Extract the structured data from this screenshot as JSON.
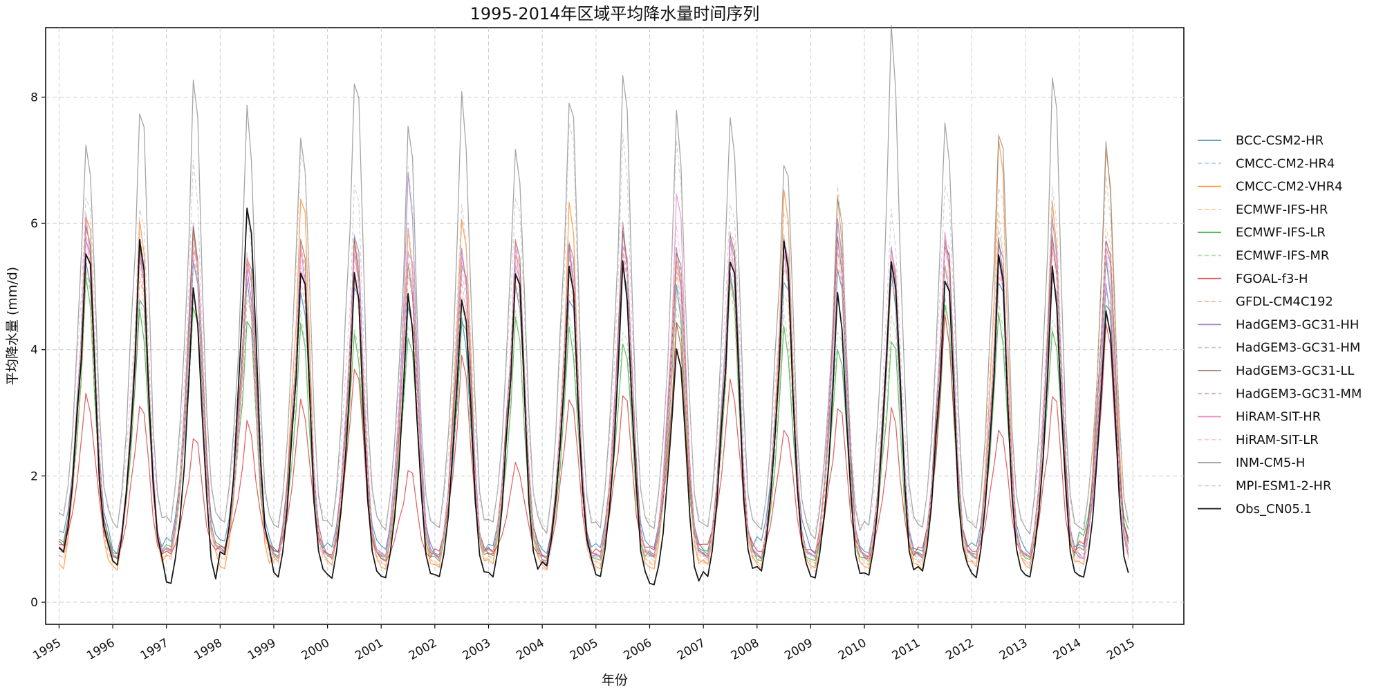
{
  "chart_data": {
    "type": "line",
    "title": "1995-2014年区域平均降水量时间序列",
    "xlabel": "年份",
    "ylabel": "平均降水量 (mm/d)",
    "ylim": [
      -0.35,
      9.1
    ],
    "yticks": [
      0,
      2,
      4,
      6,
      8
    ],
    "xlim": [
      1994.75,
      2015.95
    ],
    "xticks": [
      "1995",
      "1996",
      "1997",
      "1998",
      "1999",
      "2000",
      "2001",
      "2002",
      "2003",
      "2004",
      "2005",
      "2006",
      "2007",
      "2008",
      "2009",
      "2010",
      "2011",
      "2012",
      "2013",
      "2014",
      "2015"
    ],
    "grid": true,
    "legend_position": "right",
    "x_resolution": "monthly, Jan 1995 - Dec 2014",
    "series": [
      {
        "name": "BCC-CSM2-HR",
        "color": "#1f77b4",
        "dashed": false,
        "peaks": [
          5.5,
          4.9,
          5.3,
          5.0,
          5.0,
          5.1,
          4.6,
          4.4,
          5.1,
          4.9,
          5.2,
          4.9,
          5.3,
          5.2,
          5.2,
          5.1,
          5.4,
          5.2,
          5.1,
          5.3
        ],
        "mins": [
          0.9,
          0.6,
          0.8,
          0.8,
          0.6,
          0.7,
          0.7,
          0.6,
          0.7,
          0.6,
          0.7,
          0.7,
          0.6,
          0.8,
          0.6,
          0.6,
          0.6,
          0.7,
          0.6,
          0.7
        ]
      },
      {
        "name": "CMCC-CM2-HR4",
        "color": "#aec7e8",
        "dashed": true,
        "peaks": [
          5.9,
          5.4,
          5.6,
          5.3,
          5.5,
          5.5,
          5.4,
          5.3,
          5.4,
          5.2,
          5.5,
          5.3,
          5.6,
          5.3,
          5.8,
          5.4,
          5.8,
          5.5,
          5.6,
          5.5
        ],
        "mins": [
          0.7,
          0.5,
          0.6,
          0.6,
          0.5,
          0.5,
          0.5,
          0.5,
          0.6,
          0.4,
          0.5,
          0.5,
          0.5,
          0.5,
          0.4,
          0.5,
          0.4,
          0.5,
          0.4,
          0.5
        ]
      },
      {
        "name": "CMCC-CM2-VHR4",
        "color": "#ff7f0e",
        "dashed": false,
        "peaks": [
          6.2,
          5.9,
          5.8,
          5.6,
          6.5,
          5.6,
          5.8,
          6.2,
          5.6,
          6.2,
          5.9,
          5.5,
          5.5,
          6.4,
          6.3,
          5.7,
          5.8,
          7.2,
          6.2,
          7.3
        ],
        "mins": [
          0.3,
          0.3,
          0.5,
          0.3,
          0.4,
          0.4,
          0.3,
          0.3,
          0.4,
          0.3,
          0.3,
          0.3,
          0.4,
          0.3,
          0.3,
          0.3,
          0.3,
          0.3,
          0.3,
          0.3
        ]
      },
      {
        "name": "ECMWF-IFS-HR",
        "color": "#ffbb78",
        "dashed": true,
        "peaks": [
          5.2,
          5.1,
          5.0,
          4.9,
          5.6,
          5.0,
          4.9,
          5.0,
          5.0,
          5.1,
          5.3,
          5.0,
          5.1,
          5.4,
          5.6,
          5.2,
          5.3,
          6.0,
          5.7,
          6.1
        ],
        "mins": [
          0.5,
          0.4,
          0.6,
          0.5,
          0.5,
          0.4,
          0.4,
          0.4,
          0.5,
          0.4,
          0.4,
          0.4,
          0.4,
          0.4,
          0.4,
          0.4,
          0.4,
          0.4,
          0.4,
          0.4
        ]
      },
      {
        "name": "ECMWF-IFS-LR",
        "color": "#2ca02c",
        "dashed": false,
        "peaks": [
          5.0,
          4.6,
          4.8,
          4.5,
          4.3,
          4.2,
          4.3,
          4.5,
          4.4,
          4.3,
          4.2,
          4.5,
          5.0,
          4.3,
          4.1,
          4.2,
          4.6,
          4.5,
          4.4,
          4.8
        ],
        "mins": [
          0.8,
          0.6,
          0.7,
          0.7,
          0.6,
          0.6,
          0.5,
          0.5,
          0.6,
          0.5,
          0.5,
          0.6,
          0.6,
          0.5,
          0.5,
          0.5,
          0.6,
          0.6,
          0.5,
          0.9
        ]
      },
      {
        "name": "ECMWF-IFS-MR",
        "color": "#98df8a",
        "dashed": true,
        "peaks": [
          5.1,
          4.9,
          4.7,
          4.8,
          4.5,
          4.4,
          4.5,
          4.6,
          4.5,
          4.6,
          4.4,
          4.6,
          4.9,
          4.6,
          4.4,
          4.5,
          4.7,
          4.8,
          4.6,
          4.9
        ],
        "mins": [
          0.6,
          0.5,
          0.6,
          0.6,
          0.5,
          0.5,
          0.5,
          0.5,
          0.5,
          0.4,
          0.5,
          0.5,
          0.5,
          0.5,
          0.4,
          0.5,
          0.5,
          0.5,
          0.5,
          0.6
        ]
      },
      {
        "name": "FGOAL-f3-H",
        "color": "#d62728",
        "dashed": false,
        "peaks": [
          3.3,
          3.2,
          2.6,
          2.8,
          3.2,
          3.8,
          2.1,
          3.8,
          2.2,
          3.3,
          3.3,
          4.3,
          3.5,
          2.8,
          3.1,
          3.0,
          4.5,
          2.8,
          3.3,
          4.3
        ],
        "mins": [
          0.8,
          0.6,
          0.7,
          0.8,
          0.7,
          0.6,
          0.6,
          0.7,
          0.7,
          0.6,
          0.7,
          0.7,
          0.8,
          0.7,
          0.7,
          0.6,
          0.7,
          0.7,
          0.6,
          0.8
        ]
      },
      {
        "name": "GFDL-CM4C192",
        "color": "#ff9896",
        "dashed": true,
        "peaks": [
          5.4,
          5.2,
          5.4,
          5.0,
          5.2,
          5.3,
          5.1,
          5.0,
          5.2,
          5.0,
          5.4,
          5.1,
          5.2,
          5.0,
          5.3,
          5.2,
          5.4,
          5.3,
          5.1,
          5.4
        ],
        "mins": [
          0.5,
          0.4,
          0.5,
          0.5,
          0.4,
          0.4,
          0.4,
          0.4,
          0.5,
          0.3,
          0.4,
          0.4,
          0.4,
          0.4,
          0.3,
          0.4,
          0.4,
          0.4,
          0.4,
          0.4
        ]
      },
      {
        "name": "HadGEM3-GC31-HH",
        "color": "#9467bd",
        "dashed": false,
        "peaks": [
          5.9,
          5.6,
          5.8,
          5.3,
          5.4,
          5.8,
          6.6,
          5.6,
          5.5,
          5.7,
          5.8,
          5.6,
          5.9,
          5.7,
          5.9,
          5.6,
          5.8,
          5.7,
          5.9,
          5.0
        ],
        "mins": [
          0.6,
          0.5,
          0.6,
          0.6,
          0.5,
          0.5,
          0.5,
          0.5,
          0.6,
          0.4,
          0.5,
          0.5,
          0.5,
          0.5,
          0.5,
          0.5,
          0.5,
          0.5,
          0.5,
          0.5
        ]
      },
      {
        "name": "HadGEM3-GC31-HM",
        "color": "#c5b0d5",
        "dashed": true,
        "peaks": [
          6.0,
          5.7,
          5.9,
          5.5,
          5.6,
          5.7,
          5.9,
          5.6,
          5.6,
          5.6,
          5.9,
          5.7,
          6.0,
          5.7,
          5.9,
          5.7,
          5.9,
          5.8,
          6.0,
          5.9
        ],
        "mins": [
          0.6,
          0.5,
          0.6,
          0.6,
          0.5,
          0.5,
          0.5,
          0.5,
          0.6,
          0.4,
          0.5,
          0.5,
          0.5,
          0.5,
          0.5,
          0.5,
          0.5,
          0.5,
          0.5,
          0.5
        ]
      },
      {
        "name": "HadGEM3-GC31-LL",
        "color": "#8c564b",
        "dashed": false,
        "peaks": [
          5.9,
          5.5,
          6.0,
          5.6,
          5.7,
          5.6,
          5.4,
          5.5,
          5.7,
          5.5,
          5.9,
          5.7,
          5.8,
          5.6,
          5.8,
          5.5,
          5.7,
          5.6,
          5.8,
          5.9
        ],
        "mins": [
          0.7,
          0.5,
          0.6,
          0.6,
          0.6,
          0.5,
          0.5,
          0.5,
          0.6,
          0.5,
          0.5,
          0.5,
          0.5,
          0.5,
          0.5,
          0.5,
          0.5,
          0.5,
          0.5,
          0.6
        ]
      },
      {
        "name": "HadGEM3-GC31-MM",
        "color": "#c49c94",
        "dashed": true,
        "peaks": [
          5.7,
          5.4,
          5.8,
          5.5,
          5.5,
          5.6,
          5.5,
          5.4,
          5.6,
          5.4,
          5.7,
          5.5,
          5.7,
          5.5,
          5.7,
          5.5,
          5.6,
          5.5,
          5.7,
          5.7
        ],
        "mins": [
          0.6,
          0.5,
          0.6,
          0.6,
          0.5,
          0.5,
          0.5,
          0.5,
          0.6,
          0.4,
          0.5,
          0.5,
          0.5,
          0.5,
          0.5,
          0.5,
          0.5,
          0.5,
          0.5,
          0.5
        ]
      },
      {
        "name": "HiRAM-SIT-HR",
        "color": "#e377c2",
        "dashed": false,
        "peaks": [
          6.0,
          5.6,
          5.7,
          5.3,
          5.5,
          5.6,
          5.7,
          5.4,
          5.5,
          5.6,
          5.8,
          6.4,
          5.6,
          5.6,
          5.8,
          5.5,
          5.7,
          5.5,
          5.8,
          5.6
        ],
        "mins": [
          0.6,
          0.5,
          0.6,
          0.6,
          0.5,
          0.5,
          0.5,
          0.5,
          0.6,
          0.4,
          0.5,
          0.5,
          0.5,
          0.5,
          0.5,
          0.5,
          0.5,
          0.5,
          0.5,
          0.5
        ]
      },
      {
        "name": "HiRAM-SIT-LR",
        "color": "#f7b6d2",
        "dashed": true,
        "peaks": [
          5.8,
          5.5,
          5.6,
          5.4,
          5.4,
          5.5,
          5.6,
          5.3,
          5.4,
          5.5,
          5.6,
          5.8,
          5.5,
          5.5,
          5.7,
          5.4,
          5.6,
          5.4,
          5.6,
          5.5
        ],
        "mins": [
          0.6,
          0.5,
          0.6,
          0.6,
          0.5,
          0.5,
          0.5,
          0.5,
          0.6,
          0.4,
          0.5,
          0.5,
          0.5,
          0.5,
          0.5,
          0.5,
          0.5,
          0.5,
          0.5,
          0.5
        ]
      },
      {
        "name": "INM-CM5-H",
        "color": "#7f7f7f",
        "dashed": false,
        "peaks": [
          7.4,
          7.9,
          8.1,
          7.7,
          7.5,
          8.4,
          7.4,
          7.9,
          7.3,
          8.1,
          8.2,
          7.6,
          7.8,
          7.1,
          6.3,
          8.9,
          7.7,
          7.6,
          8.2,
          7.1
        ],
        "mins": [
          1.1,
          0.9,
          1.0,
          1.0,
          0.9,
          0.9,
          0.9,
          0.9,
          1.0,
          0.8,
          0.9,
          0.9,
          0.9,
          0.9,
          0.8,
          0.9,
          0.9,
          0.9,
          0.8,
          0.9
        ]
      },
      {
        "name": "MPI-ESM1-2-HR",
        "color": "#c7c7c7",
        "dashed": true,
        "peaks": [
          6.6,
          6.2,
          6.8,
          6.2,
          7.3,
          6.6,
          6.7,
          6.3,
          6.6,
          7.6,
          7.2,
          7.3,
          6.5,
          6.2,
          6.4,
          6.2,
          6.8,
          6.6,
          6.4,
          6.7
        ],
        "mins": [
          1.2,
          1.0,
          1.1,
          1.1,
          1.0,
          1.0,
          1.0,
          1.0,
          1.1,
          0.9,
          1.0,
          1.0,
          1.0,
          1.0,
          0.9,
          1.0,
          1.0,
          1.0,
          0.9,
          1.0
        ]
      },
      {
        "name": "Obs_CN05.1",
        "color": "#000000",
        "dashed": false,
        "peaks": [
          5.6,
          5.6,
          4.9,
          6.4,
          5.3,
          5.1,
          4.8,
          4.9,
          5.3,
          5.2,
          5.3,
          4.1,
          5.5,
          5.6,
          4.8,
          5.5,
          5.2,
          5.4,
          5.2,
          4.7
        ],
        "mins": [
          0.6,
          0.4,
          0.1,
          0.5,
          0.2,
          0.2,
          0.2,
          0.2,
          0.2,
          0.4,
          0.2,
          0.1,
          0.2,
          0.3,
          0.2,
          0.2,
          0.3,
          0.2,
          0.2,
          0.2
        ]
      }
    ]
  }
}
